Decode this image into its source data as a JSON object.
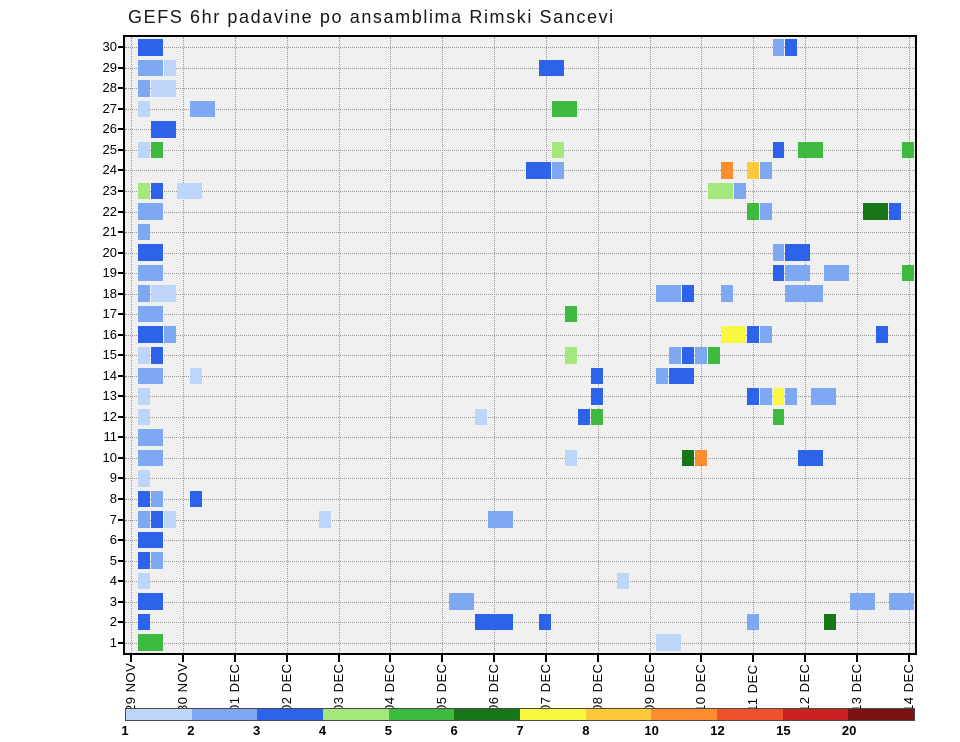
{
  "colors": {
    "plot_bg": "#f0f0f0",
    "grid": "#989898",
    "axis": "#000000"
  },
  "chart_data": {
    "type": "heatmap",
    "title": "GEFS 6hr padavine po ansamblima Rimski Sancevi",
    "n_rows": 30,
    "n_cols": 61,
    "x_steps_per_day": 4,
    "grid": "dotted",
    "y_categories": [
      "1",
      "2",
      "3",
      "4",
      "5",
      "6",
      "7",
      "8",
      "9",
      "10",
      "11",
      "12",
      "13",
      "14",
      "15",
      "16",
      "17",
      "18",
      "19",
      "20",
      "21",
      "22",
      "23",
      "24",
      "25",
      "26",
      "27",
      "28",
      "29",
      "30"
    ],
    "x_tick_labels": [
      "29 NOV",
      "30 NOV",
      "01 DEC",
      "02 DEC",
      "03 DEC",
      "04 DEC",
      "05 DEC",
      "06 DEC",
      "07 DEC",
      "08 DEC",
      "09 DEC",
      "10 DEC",
      "11 DEC",
      "12 DEC",
      "13 DEC",
      "14 DEC"
    ],
    "legend": {
      "position": "bottom",
      "labels": [
        "1",
        "2",
        "3",
        "4",
        "5",
        "6",
        "7",
        "8",
        "10",
        "12",
        "15",
        "20"
      ],
      "colors": [
        "#bdd5f8",
        "#7fa8f3",
        "#2c63ea",
        "#a4e77d",
        "#3eba3f",
        "#167618",
        "#f9f840",
        "#fcc93a",
        "#fb8d2e",
        "#f1502a",
        "#ca2020",
        "#7c1215"
      ]
    },
    "cells": [
      [
        30,
        1,
        2,
        3
      ],
      [
        30,
        50,
        1,
        2
      ],
      [
        30,
        51,
        1,
        3
      ],
      [
        29,
        1,
        2,
        2
      ],
      [
        29,
        3,
        1,
        1
      ],
      [
        29,
        32,
        2,
        3
      ],
      [
        28,
        1,
        1,
        2
      ],
      [
        28,
        2,
        2,
        1
      ],
      [
        27,
        1,
        1,
        1
      ],
      [
        27,
        5,
        2,
        2
      ],
      [
        27,
        33,
        2,
        5
      ],
      [
        26,
        2,
        2,
        3
      ],
      [
        25,
        1,
        1,
        1
      ],
      [
        25,
        2,
        1,
        5
      ],
      [
        25,
        33,
        1,
        4
      ],
      [
        25,
        50,
        1,
        3
      ],
      [
        25,
        52,
        2,
        5
      ],
      [
        25,
        60,
        1,
        5
      ],
      [
        24,
        31,
        2,
        3
      ],
      [
        24,
        33,
        1,
        2
      ],
      [
        24,
        46,
        1,
        9
      ],
      [
        24,
        48,
        1,
        8
      ],
      [
        24,
        49,
        1,
        2
      ],
      [
        23,
        1,
        1,
        4
      ],
      [
        23,
        2,
        1,
        3
      ],
      [
        23,
        4,
        2,
        1
      ],
      [
        23,
        45,
        2,
        4
      ],
      [
        23,
        47,
        1,
        2
      ],
      [
        22,
        1,
        2,
        2
      ],
      [
        22,
        48,
        1,
        5
      ],
      [
        22,
        49,
        1,
        2
      ],
      [
        22,
        57,
        2,
        6
      ],
      [
        22,
        59,
        1,
        3
      ],
      [
        21,
        1,
        1,
        2
      ],
      [
        20,
        1,
        2,
        3
      ],
      [
        20,
        50,
        1,
        2
      ],
      [
        20,
        51,
        2,
        3
      ],
      [
        19,
        1,
        2,
        2
      ],
      [
        19,
        50,
        1,
        3
      ],
      [
        19,
        51,
        2,
        2
      ],
      [
        19,
        54,
        2,
        2
      ],
      [
        19,
        60,
        1,
        5
      ],
      [
        18,
        1,
        1,
        2
      ],
      [
        18,
        2,
        2,
        1
      ],
      [
        18,
        41,
        2,
        2
      ],
      [
        18,
        43,
        1,
        3
      ],
      [
        18,
        46,
        1,
        2
      ],
      [
        18,
        51,
        3,
        2
      ],
      [
        17,
        1,
        2,
        2
      ],
      [
        17,
        34,
        1,
        5
      ],
      [
        16,
        1,
        2,
        3
      ],
      [
        16,
        3,
        1,
        2
      ],
      [
        16,
        46,
        2,
        7
      ],
      [
        16,
        48,
        1,
        3
      ],
      [
        16,
        49,
        1,
        2
      ],
      [
        16,
        58,
        1,
        3
      ],
      [
        15,
        1,
        1,
        1
      ],
      [
        15,
        2,
        1,
        3
      ],
      [
        15,
        34,
        1,
        4
      ],
      [
        15,
        42,
        1,
        2
      ],
      [
        15,
        43,
        1,
        3
      ],
      [
        15,
        44,
        1,
        2
      ],
      [
        15,
        45,
        1,
        5
      ],
      [
        14,
        1,
        2,
        2
      ],
      [
        14,
        5,
        1,
        1
      ],
      [
        14,
        36,
        1,
        3
      ],
      [
        14,
        41,
        1,
        2
      ],
      [
        14,
        42,
        2,
        3
      ],
      [
        13,
        1,
        1,
        1
      ],
      [
        13,
        36,
        1,
        3
      ],
      [
        13,
        48,
        1,
        3
      ],
      [
        13,
        49,
        1,
        2
      ],
      [
        13,
        50,
        1,
        7
      ],
      [
        13,
        51,
        1,
        2
      ],
      [
        13,
        53,
        2,
        2
      ],
      [
        12,
        1,
        1,
        1
      ],
      [
        12,
        27,
        1,
        1
      ],
      [
        12,
        35,
        1,
        3
      ],
      [
        12,
        36,
        1,
        5
      ],
      [
        12,
        50,
        1,
        5
      ],
      [
        11,
        1,
        2,
        2
      ],
      [
        10,
        1,
        2,
        2
      ],
      [
        10,
        34,
        1,
        1
      ],
      [
        10,
        43,
        1,
        6
      ],
      [
        10,
        44,
        1,
        9
      ],
      [
        10,
        52,
        2,
        3
      ],
      [
        9,
        1,
        1,
        1
      ],
      [
        8,
        1,
        1,
        3
      ],
      [
        8,
        2,
        1,
        2
      ],
      [
        8,
        5,
        1,
        3
      ],
      [
        7,
        1,
        1,
        2
      ],
      [
        7,
        2,
        1,
        3
      ],
      [
        7,
        3,
        1,
        1
      ],
      [
        7,
        15,
        1,
        1
      ],
      [
        7,
        28,
        2,
        2
      ],
      [
        6,
        1,
        2,
        3
      ],
      [
        5,
        1,
        1,
        3
      ],
      [
        5,
        2,
        1,
        2
      ],
      [
        4,
        1,
        1,
        1
      ],
      [
        4,
        38,
        1,
        1
      ],
      [
        3,
        1,
        2,
        3
      ],
      [
        3,
        25,
        2,
        2
      ],
      [
        3,
        56,
        2,
        2
      ],
      [
        3,
        59,
        2,
        2
      ],
      [
        2,
        1,
        1,
        3
      ],
      [
        2,
        27,
        3,
        3
      ],
      [
        2,
        32,
        1,
        3
      ],
      [
        2,
        48,
        1,
        2
      ],
      [
        2,
        54,
        1,
        6
      ],
      [
        1,
        1,
        2,
        5
      ],
      [
        1,
        41,
        2,
        1
      ]
    ]
  }
}
